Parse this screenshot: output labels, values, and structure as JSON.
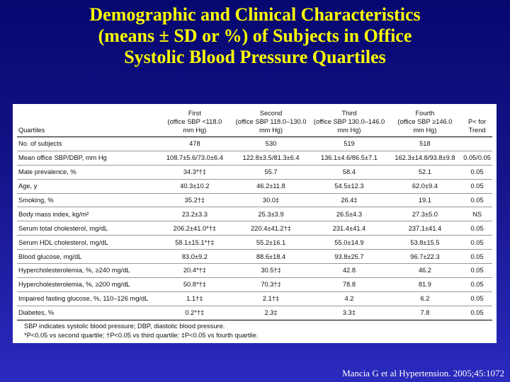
{
  "title": {
    "line1": "Demographic and Clinical Characteristics",
    "line2": "(means ± SD or %) of Subjects in Office",
    "line3": "Systolic Blood Pressure Quartiles"
  },
  "table": {
    "headers": [
      [
        "",
        "",
        "Quartiles"
      ],
      [
        "First",
        "(office SBP <118.0",
        "mm Hg)"
      ],
      [
        "Second",
        "(office SBP 118.0–130.0",
        "mm Hg)"
      ],
      [
        "Third",
        "(office SBP 130.0–146.0",
        "mm Hg)"
      ],
      [
        "Fourth",
        "(office SBP ≥146.0",
        "mm Hg)"
      ],
      [
        "P< for",
        "Trend",
        ""
      ]
    ],
    "rows": [
      [
        "No. of subjects",
        "478",
        "530",
        "519",
        "518",
        ""
      ],
      [
        "Mean office SBP/DBP, mm Hg",
        "108.7±5.6/73.0±6.4",
        "122.8±3.5/81.3±6.4",
        "136.1±4.6/86.5±7.1",
        "162.3±14.8/93.8±9.8",
        "0.05/0.05"
      ],
      [
        "Male prevalence, %",
        "34.3*†‡",
        "55.7",
        "58.4",
        "52.1",
        "0.05"
      ],
      [
        "Age, y",
        "40.3±10.2",
        "46.2±11.8",
        "54.5±12.3",
        "62.0±9.4",
        "0.05"
      ],
      [
        "Smoking, %",
        "35.2†‡",
        "30.0‡",
        "26.4‡",
        "19.1",
        "0.05"
      ],
      [
        "Body mass index, kg/m²",
        "23.2±3.3",
        "25.3±3.9",
        "26.5±4.3",
        "27.3±5.0",
        "NS"
      ],
      [
        "Serum total cholesterol, mg/dL",
        "206.2±41.0*†‡",
        "220.4±41.2†‡",
        "231.4±41.4",
        "237.1±41.4",
        "0.05"
      ],
      [
        "Serum HDL cholesterol, mg/dL",
        "58.1±15.1*†‡",
        "55.2±16.1",
        "55.0±14.9",
        "53.8±15.5",
        "0.05"
      ],
      [
        "Blood glucose, mg/dL",
        "83.0±9.2",
        "88.6±18.4",
        "93.8±25.7",
        "96.7±22.3",
        "0.05"
      ],
      [
        "Hypercholesterolemia, %, ≥240 mg/dL",
        "20.4*†‡",
        "30.5†‡",
        "42.8",
        "46.2",
        "0.05"
      ],
      [
        "Hypercholesterolemia, %, ≥200 mg/dL",
        "50.8*†‡",
        "70.3†‡",
        "78.8",
        "81.9",
        "0.05"
      ],
      [
        "Impaired fasting glucose, %, 110–126 mg/dL",
        "1.1†‡",
        "2.1†‡",
        "4.2",
        "6.2",
        "0.05"
      ],
      [
        "Diabetes, %",
        "0.2*†‡",
        "2.3‡",
        "3.3‡",
        "7.8",
        "0.05"
      ]
    ],
    "notes": {
      "line1": "SBP indicates systolic blood pressure; DBP, diastolic blood pressure.",
      "line2": "*P<0.05 vs second quartile; †P<0.05 vs third quartile; ‡P<0.05 vs fourth quartile."
    }
  },
  "citation": "Mancia G et al Hypertension. 2005;45:1072",
  "colors": {
    "title": "#ffff00",
    "background_top": "#070770",
    "background_bottom": "#2a2abf",
    "citation": "#ffffff"
  }
}
